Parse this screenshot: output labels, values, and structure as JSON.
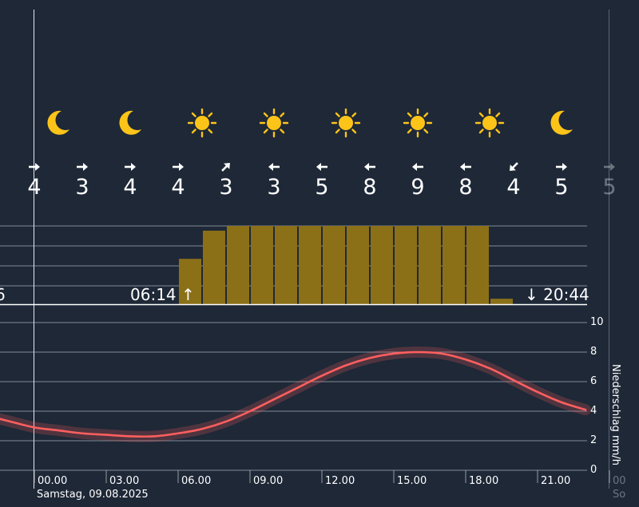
{
  "weather": {
    "icons": [
      {
        "hour": "-02",
        "icon": "moon-icon"
      },
      {
        "hour": "01",
        "icon": "moon-icon"
      },
      {
        "hour": "04",
        "icon": "moon-icon"
      },
      {
        "hour": "07",
        "icon": "sun-icon"
      },
      {
        "hour": "10",
        "icon": "sun-icon"
      },
      {
        "hour": "13",
        "icon": "sun-icon"
      },
      {
        "hour": "16",
        "icon": "sun-icon"
      },
      {
        "hour": "19",
        "icon": "sun-icon"
      },
      {
        "hour": "22",
        "icon": "moon-icon"
      }
    ],
    "icon_colors": {
      "sun": "#fcc419",
      "moon": "#fcc419"
    }
  },
  "wind": [
    {
      "dir": "east",
      "speed": "4"
    },
    {
      "dir": "east",
      "speed": "3"
    },
    {
      "dir": "east",
      "speed": "4"
    },
    {
      "dir": "east",
      "speed": "4"
    },
    {
      "dir": "north-east",
      "speed": "3"
    },
    {
      "dir": "west",
      "speed": "3"
    },
    {
      "dir": "west",
      "speed": "5"
    },
    {
      "dir": "west",
      "speed": "8"
    },
    {
      "dir": "west",
      "speed": "9"
    },
    {
      "dir": "west",
      "speed": "8"
    },
    {
      "dir": "south-west",
      "speed": "4"
    },
    {
      "dir": "east",
      "speed": "5"
    },
    {
      "dir": "east",
      "speed": "5"
    }
  ],
  "sunshine": {
    "left_partial_label": "6",
    "sunrise": "06:14",
    "sunset": "20:44",
    "bar_color": "#8b7018",
    "bar_fractions": [
      0.58,
      0.94,
      1,
      1,
      1,
      1,
      1,
      1,
      1,
      1,
      1,
      1,
      1,
      0.07
    ]
  },
  "chart_data": {
    "type": "line",
    "ylabel": "Niederschlag mm/h",
    "ylim": [
      0,
      10
    ],
    "y_ticks": [
      "0",
      "2",
      "4",
      "6",
      "8",
      "10"
    ],
    "x_ticks": [
      "00.00",
      "03.00",
      "06.00",
      "09.00",
      "12.00",
      "15.00",
      "18.00",
      "21.00"
    ],
    "next_day_tick": "00",
    "next_day_label": "So",
    "date_label": "Samstag, 09.08.2025",
    "series": [
      {
        "color": "#ff5f5f",
        "x": [
          -1.5,
          -1,
          0,
          1,
          2,
          3,
          4,
          5,
          6,
          7,
          8,
          9,
          10,
          11,
          12,
          13,
          14,
          15,
          16,
          17,
          18,
          19,
          20,
          21,
          22,
          23
        ],
        "values": [
          3.5,
          3.3,
          2.9,
          2.7,
          2.5,
          2.4,
          2.3,
          2.3,
          2.5,
          2.8,
          3.3,
          4.0,
          4.8,
          5.6,
          6.4,
          7.1,
          7.6,
          7.9,
          8.0,
          7.9,
          7.5,
          6.9,
          6.1,
          5.3,
          4.6,
          4.1
        ]
      }
    ]
  }
}
